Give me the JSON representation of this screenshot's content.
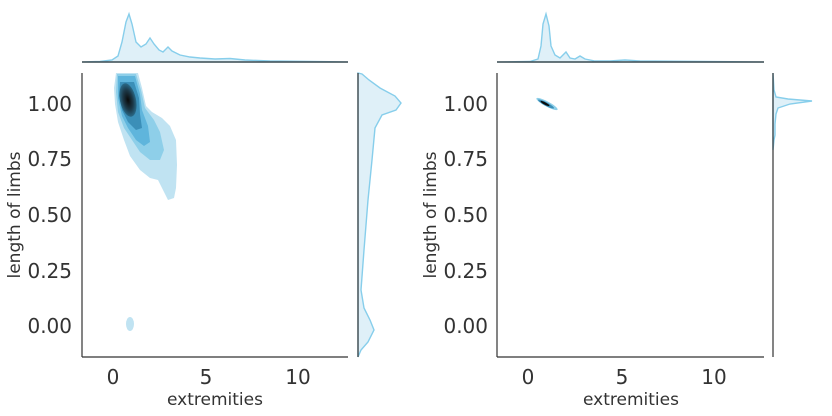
{
  "chart_data": [
    {
      "type": "kde-joint",
      "xlabel": "extremities",
      "ylabel": "length of limbs",
      "xlim": [
        -1.5,
        12.5
      ],
      "ylim": [
        -0.15,
        1.15
      ],
      "xticks": [
        "0",
        "5",
        "10"
      ],
      "yticks": [
        "0.00",
        "0.25",
        "0.50",
        "0.75",
        "1.00"
      ],
      "color": "#87ceeb",
      "density_peaks": [
        {
          "x": 1.0,
          "y": 1.0,
          "level": "highest"
        },
        {
          "x": 2.2,
          "y": 0.78,
          "level": "low"
        },
        {
          "x": 1.0,
          "y": 0.0,
          "level": "low"
        }
      ],
      "x_marginal_peaks": [
        1.0,
        2.0,
        3.0
      ],
      "y_marginal_peaks": [
        1.0,
        0.05
      ]
    },
    {
      "type": "kde-joint",
      "xlabel": "extremities",
      "ylabel": "length of limbs",
      "xlim": [
        -1.5,
        12.5
      ],
      "ylim": [
        -0.15,
        1.15
      ],
      "xticks": [
        "0",
        "5",
        "10"
      ],
      "yticks": [
        "0.00",
        "0.25",
        "0.50",
        "0.75",
        "1.00"
      ],
      "color": "#87ceeb",
      "density_peaks": [
        {
          "x": 1.0,
          "y": 1.0,
          "level": "highest",
          "x_range": [
            0.5,
            1.5
          ],
          "y_range": [
            0.98,
            1.02
          ]
        }
      ],
      "x_marginal_peaks": [
        1.0,
        2.0,
        3.0
      ],
      "y_marginal_peaks": [
        1.0
      ]
    }
  ]
}
